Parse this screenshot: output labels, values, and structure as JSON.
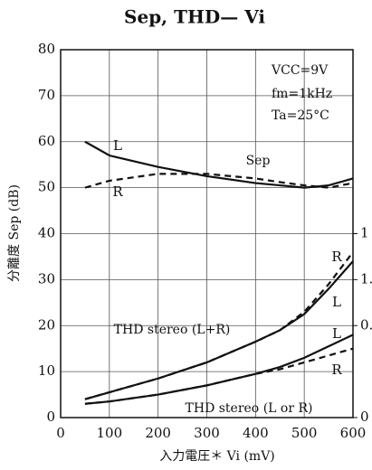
{
  "chart_data": {
    "type": "line",
    "title": "Sep, THD— Vi",
    "x_label": "入力電圧＊ Vi (mV)",
    "y_label": "分離度 Sep (dB)",
    "xlim": [
      0,
      600
    ],
    "xticks": [
      0,
      100,
      200,
      300,
      400,
      500,
      600
    ],
    "ylim": [
      0,
      80
    ],
    "yticks": [
      0,
      10,
      20,
      30,
      40,
      50,
      60,
      70,
      80
    ],
    "y2lim": [
      0,
      3.2
    ],
    "y2ticks": [
      0,
      {
        "value": 0.8,
        "label": "0."
      },
      {
        "value": 1.2,
        "label": "1."
      },
      {
        "value": 1.6,
        "label": "1"
      }
    ],
    "grid": true,
    "annotations": [
      "VCC=9V",
      "fm=1kHz",
      "Ta=25°C",
      "Sep",
      "THD stereo (L+R)",
      "THD stereo (L or R)"
    ],
    "x": [
      50,
      100,
      200,
      300,
      400,
      450,
      500,
      550,
      600
    ],
    "series": [
      {
        "name": "L",
        "color": "#111",
        "dashed": false,
        "values": [
          60,
          57,
          54.5,
          52.5,
          51,
          50.5,
          50,
          50.5,
          52
        ]
      },
      {
        "name": "R",
        "color": "#111",
        "dashed": true,
        "values": [
          50,
          51.5,
          53,
          53,
          52,
          51.2,
          50.5,
          50,
          51
        ]
      },
      {
        "name": "L",
        "color": "#111",
        "dashed": false,
        "axis": "y2",
        "values": [
          0.16,
          0.22,
          0.34,
          0.48,
          0.66,
          0.76,
          0.9,
          1.12,
          1.36
        ]
      },
      {
        "name": "R",
        "color": "#111",
        "dashed": true,
        "axis": "y2",
        "values": [
          0.16,
          0.22,
          0.34,
          0.48,
          0.66,
          0.76,
          0.92,
          1.16,
          1.44
        ]
      },
      {
        "name": "L",
        "color": "#111",
        "dashed": false,
        "axis": "y2",
        "values": [
          0.12,
          0.14,
          0.2,
          0.28,
          0.38,
          0.44,
          0.52,
          0.62,
          0.72
        ]
      },
      {
        "name": "R",
        "color": "#111",
        "dashed": true,
        "axis": "y2",
        "values": [
          0.12,
          0.14,
          0.2,
          0.28,
          0.38,
          0.42,
          0.48,
          0.54,
          0.6
        ]
      }
    ]
  }
}
